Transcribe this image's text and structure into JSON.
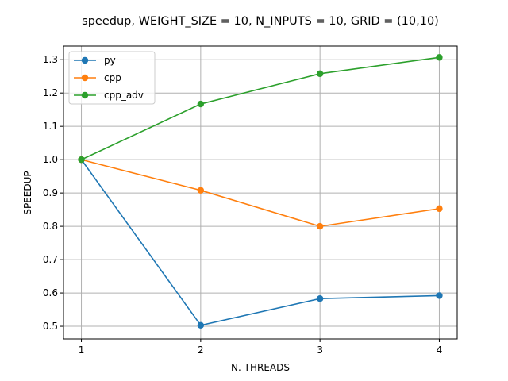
{
  "chart_data": {
    "type": "line",
    "title": "speedup, WEIGHT_SIZE = 10, N_INPUTS = 10, GRID = (10,10)",
    "xlabel": "N. THREADS",
    "ylabel": "SPEEDUP",
    "x": [
      1,
      2,
      3,
      4
    ],
    "xticks": [
      "1",
      "2",
      "3",
      "4"
    ],
    "yticks": [
      "0.5",
      "0.6",
      "0.7",
      "0.8",
      "0.9",
      "1.0",
      "1.1",
      "1.2",
      "1.3"
    ],
    "xlim": [
      0.85,
      4.15
    ],
    "ylim": [
      0.462,
      1.341
    ],
    "grid": true,
    "legend_position": "top-left",
    "series": [
      {
        "name": "py",
        "color": "#1f77b4",
        "values": [
          1.0,
          0.503,
          0.583,
          0.592
        ]
      },
      {
        "name": "cpp",
        "color": "#ff7f0e",
        "values": [
          1.0,
          0.908,
          0.8,
          0.853
        ]
      },
      {
        "name": "cpp_adv",
        "color": "#2ca02c",
        "values": [
          1.0,
          1.167,
          1.258,
          1.307
        ]
      }
    ]
  }
}
